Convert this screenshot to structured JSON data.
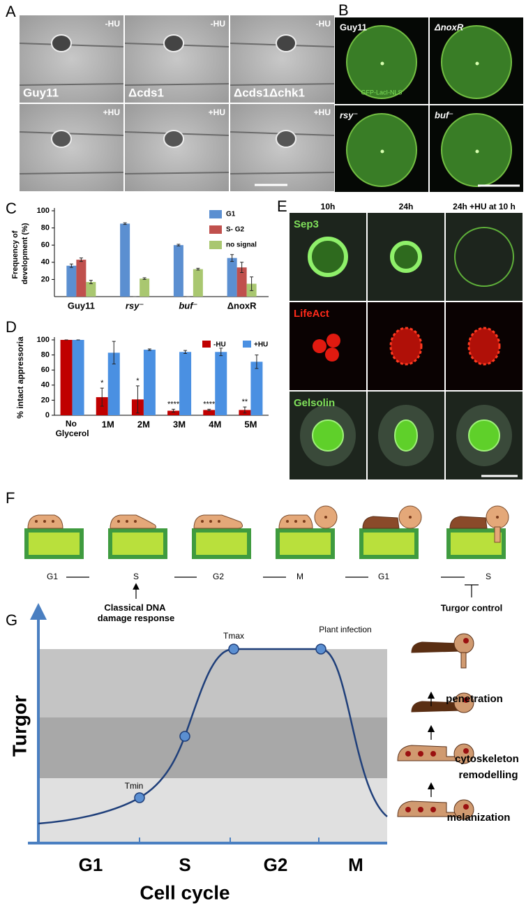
{
  "panel_labels": [
    "A",
    "B",
    "C",
    "D",
    "E",
    "F",
    "G"
  ],
  "panel_a": {
    "conditions": [
      "-HU",
      "+HU"
    ],
    "strains": [
      "Guy11",
      "Δcds1",
      "Δcds1Δchk1"
    ]
  },
  "panel_b": {
    "strains": [
      "Guy11",
      "ΔnoxR",
      "rsy⁻",
      "buf⁻"
    ],
    "reporter": "GFP-LacI-NLS"
  },
  "chart_data": [
    {
      "type": "bar",
      "y_label": "Frequency of development (%)",
      "categories": [
        "Guy11",
        "rsy⁻",
        "buf⁻",
        "ΔnoxR"
      ],
      "series": [
        {
          "name": "G1",
          "color": "#5b8fd1",
          "values": [
            36,
            85,
            60,
            45
          ],
          "errors": [
            2,
            1,
            1,
            4
          ]
        },
        {
          "name": "S- G2",
          "color": "#c0504d",
          "values": [
            43,
            0,
            0,
            34
          ],
          "errors": [
            2,
            0,
            0,
            6
          ]
        },
        {
          "name": "no signal",
          "color": "#a9c770",
          "values": [
            17,
            21,
            32,
            15
          ],
          "errors": [
            2,
            1,
            1,
            8
          ]
        }
      ],
      "ylim": [
        0,
        100
      ],
      "yticks": [
        20,
        40,
        60,
        80,
        100
      ],
      "legend": "top-right"
    },
    {
      "type": "bar",
      "y_label": "% intact appressoria",
      "categories": [
        "No Glycerol",
        "1M",
        "2M",
        "3M",
        "4M",
        "5M"
      ],
      "series": [
        {
          "name": "-HU",
          "color": "#c00000",
          "values": [
            100,
            24,
            21,
            6,
            7,
            7
          ],
          "errors": [
            0,
            12,
            18,
            2,
            1,
            4
          ]
        },
        {
          "name": "+HU",
          "color": "#4a90e2",
          "values": [
            100,
            83,
            87,
            84,
            84,
            71
          ],
          "errors": [
            0,
            15,
            1,
            2,
            5,
            9
          ]
        }
      ],
      "annotations": [
        null,
        "*",
        "*",
        "****",
        "****",
        "**"
      ],
      "ylim": [
        0,
        100
      ],
      "yticks": [
        0,
        20,
        40,
        60,
        80,
        100
      ],
      "legend": "top-right"
    }
  ],
  "panel_e": {
    "timepoints": [
      "10h",
      "24h",
      "24h +HU at 10 h"
    ],
    "markers": [
      "Sep3",
      "LifeAct",
      "Gelsolin"
    ]
  },
  "panel_f": {
    "phases": [
      "G1",
      "S",
      "G2",
      "M",
      "G1",
      "S"
    ],
    "annotations": [
      "Classical DNA damage response",
      "Turgor control"
    ]
  },
  "panel_g": {
    "y_label": "Turgor",
    "x_label": "Cell cycle",
    "phases": [
      "G1",
      "S",
      "G2",
      "M"
    ],
    "points": [
      "Tmin",
      "Tmax",
      "Plant infection"
    ],
    "steps": [
      "penetration",
      "cytoskeleton remodelling",
      "melanization"
    ]
  }
}
